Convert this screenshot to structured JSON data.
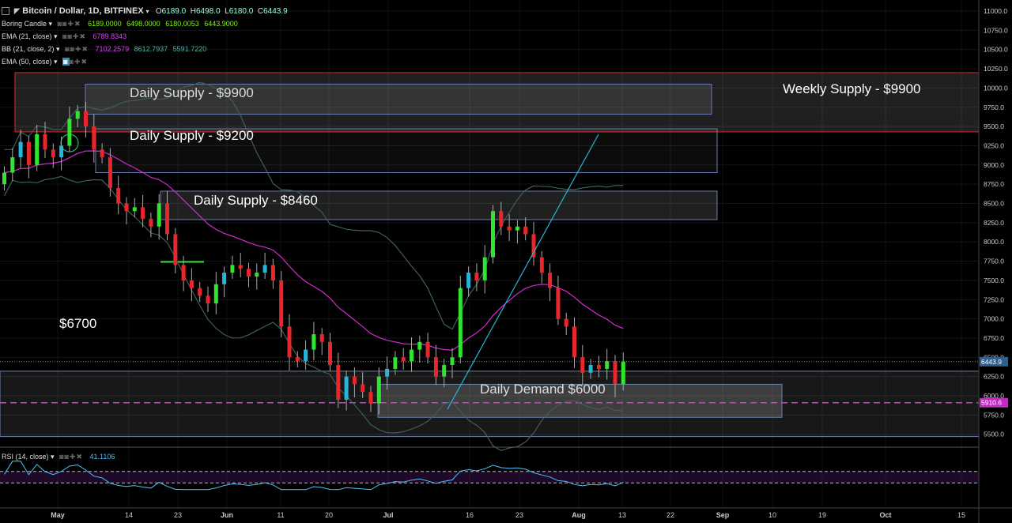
{
  "header": {
    "symbol_title": "Bitcoin / Dollar, 1D, BITFINEX",
    "open_label": "O",
    "open_value": "6189.0",
    "high_label": "H",
    "high_value": "6498.0",
    "low_label": "L",
    "low_value": "6180.0",
    "close_label": "C",
    "close_value": "6443.9"
  },
  "indicators": [
    {
      "label": "Boring Candle",
      "values": [
        "6189.0000",
        "6498.0000",
        "6180.0053",
        "6443.9000"
      ],
      "color": "#7cfc00"
    },
    {
      "label": "EMA (21, close)",
      "values": [
        "6789.8343"
      ],
      "color": "#e040fb"
    },
    {
      "label": "BB (21, close, 2)",
      "values": [
        "7102.2579",
        "8612.7937",
        "5591.7220"
      ],
      "colors": [
        "#e040fb",
        "#4db6ac",
        "#4db6ac"
      ]
    },
    {
      "label": "EMA (50, close)",
      "values": [],
      "color": "#26c6da"
    }
  ],
  "rsi": {
    "label": "RSI (14, close)",
    "value": "41.1106",
    "color": "#4fc3f7"
  },
  "annotations": {
    "weekly_supply": "Weekly Supply - $9900",
    "daily_supply_9900": "Daily Supply - $9900",
    "daily_supply_9200": "Daily Supply - $9200",
    "daily_supply_8460": "Daily Supply - $8460",
    "daily_demand": "Daily Demand $6000",
    "level_6700": "$6700"
  },
  "price_badges": {
    "current": "6443.9",
    "level": "5910.6"
  },
  "colors": {
    "up": "#2ee62e",
    "down": "#e8262b",
    "up_alt": "#27b6d8",
    "ema21": "#d32bd3",
    "bb": "#3e5f5c",
    "zone_border": "#6a7fb0",
    "weekly_border": "#e02828",
    "dashed": "#d43cd4"
  },
  "chart_data": {
    "type": "candlestick",
    "title": "Bitcoin / Dollar, 1D, BITFINEX",
    "x_tick_labels": [
      "May",
      "14",
      "23",
      "Jun",
      "11",
      "20",
      "Jul",
      "16",
      "23",
      "Aug",
      "13",
      "22",
      "Sep",
      "10",
      "19",
      "Oct",
      "15"
    ],
    "y_tick_labels": [
      "11000.0",
      "10750.0",
      "10500.0",
      "10250.0",
      "10000.0",
      "9750.0",
      "9500.0",
      "9250.0",
      "9000.0",
      "8750.0",
      "8500.0",
      "8250.0",
      "8000.0",
      "7750.0",
      "7500.0",
      "7250.0",
      "7000.0",
      "6750.0",
      "6500.0",
      "6250.0",
      "6000.0",
      "5750.0",
      "5500.0"
    ],
    "ylim": [
      5400,
      11100
    ],
    "close_path": [
      8900,
      9100,
      9300,
      9000,
      9400,
      9200,
      9100,
      9250,
      9600,
      9700,
      9500,
      9200,
      9100,
      8700,
      8500,
      8400,
      8450,
      8300,
      8200,
      8500,
      8100,
      7700,
      7500,
      7400,
      7300,
      7200,
      7450,
      7600,
      7700,
      7650,
      7550,
      7600,
      7700,
      7500,
      6900,
      6500,
      6450,
      6600,
      6800,
      6700,
      6400,
      5950,
      6250,
      6150,
      6050,
      5900,
      6250,
      6350,
      6500,
      6450,
      6600,
      6700,
      6500,
      6250,
      6400,
      6500,
      7400,
      7600,
      7500,
      7800,
      8400,
      8200,
      8150,
      8200,
      8100,
      7800,
      7600,
      7400,
      7000,
      6900,
      6500,
      6300,
      6400,
      6350,
      6450,
      6150,
      6443.9
    ],
    "rsi_range": [
      0,
      100
    ],
    "rsi_levels": [
      60,
      40
    ],
    "rsi_current": 41.1106
  }
}
